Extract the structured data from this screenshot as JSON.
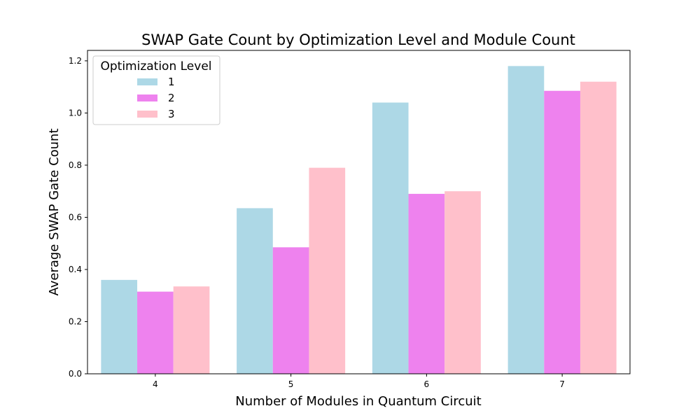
{
  "chart_data": {
    "type": "bar",
    "title": "SWAP Gate Count by Optimization Level and Module Count",
    "xlabel": "Number of Modules in Quantum Circuit",
    "ylabel": "Average SWAP Gate Count",
    "categories": [
      "4",
      "5",
      "6",
      "7"
    ],
    "ylim": [
      0,
      1.24
    ],
    "yticks": [
      "0.0",
      "0.2",
      "0.4",
      "0.6",
      "0.8",
      "1.0",
      "1.2"
    ],
    "grid": false,
    "legend": {
      "title": "Optimization Level",
      "placement": "top-left"
    },
    "series": [
      {
        "name": "1",
        "color": "#add8e6",
        "values": [
          0.36,
          0.635,
          1.04,
          1.18
        ]
      },
      {
        "name": "2",
        "color": "#ee82ee",
        "values": [
          0.315,
          0.485,
          0.69,
          1.085
        ]
      },
      {
        "name": "3",
        "color": "#ffc0cb",
        "values": [
          0.335,
          0.79,
          0.7,
          1.12
        ]
      }
    ]
  }
}
